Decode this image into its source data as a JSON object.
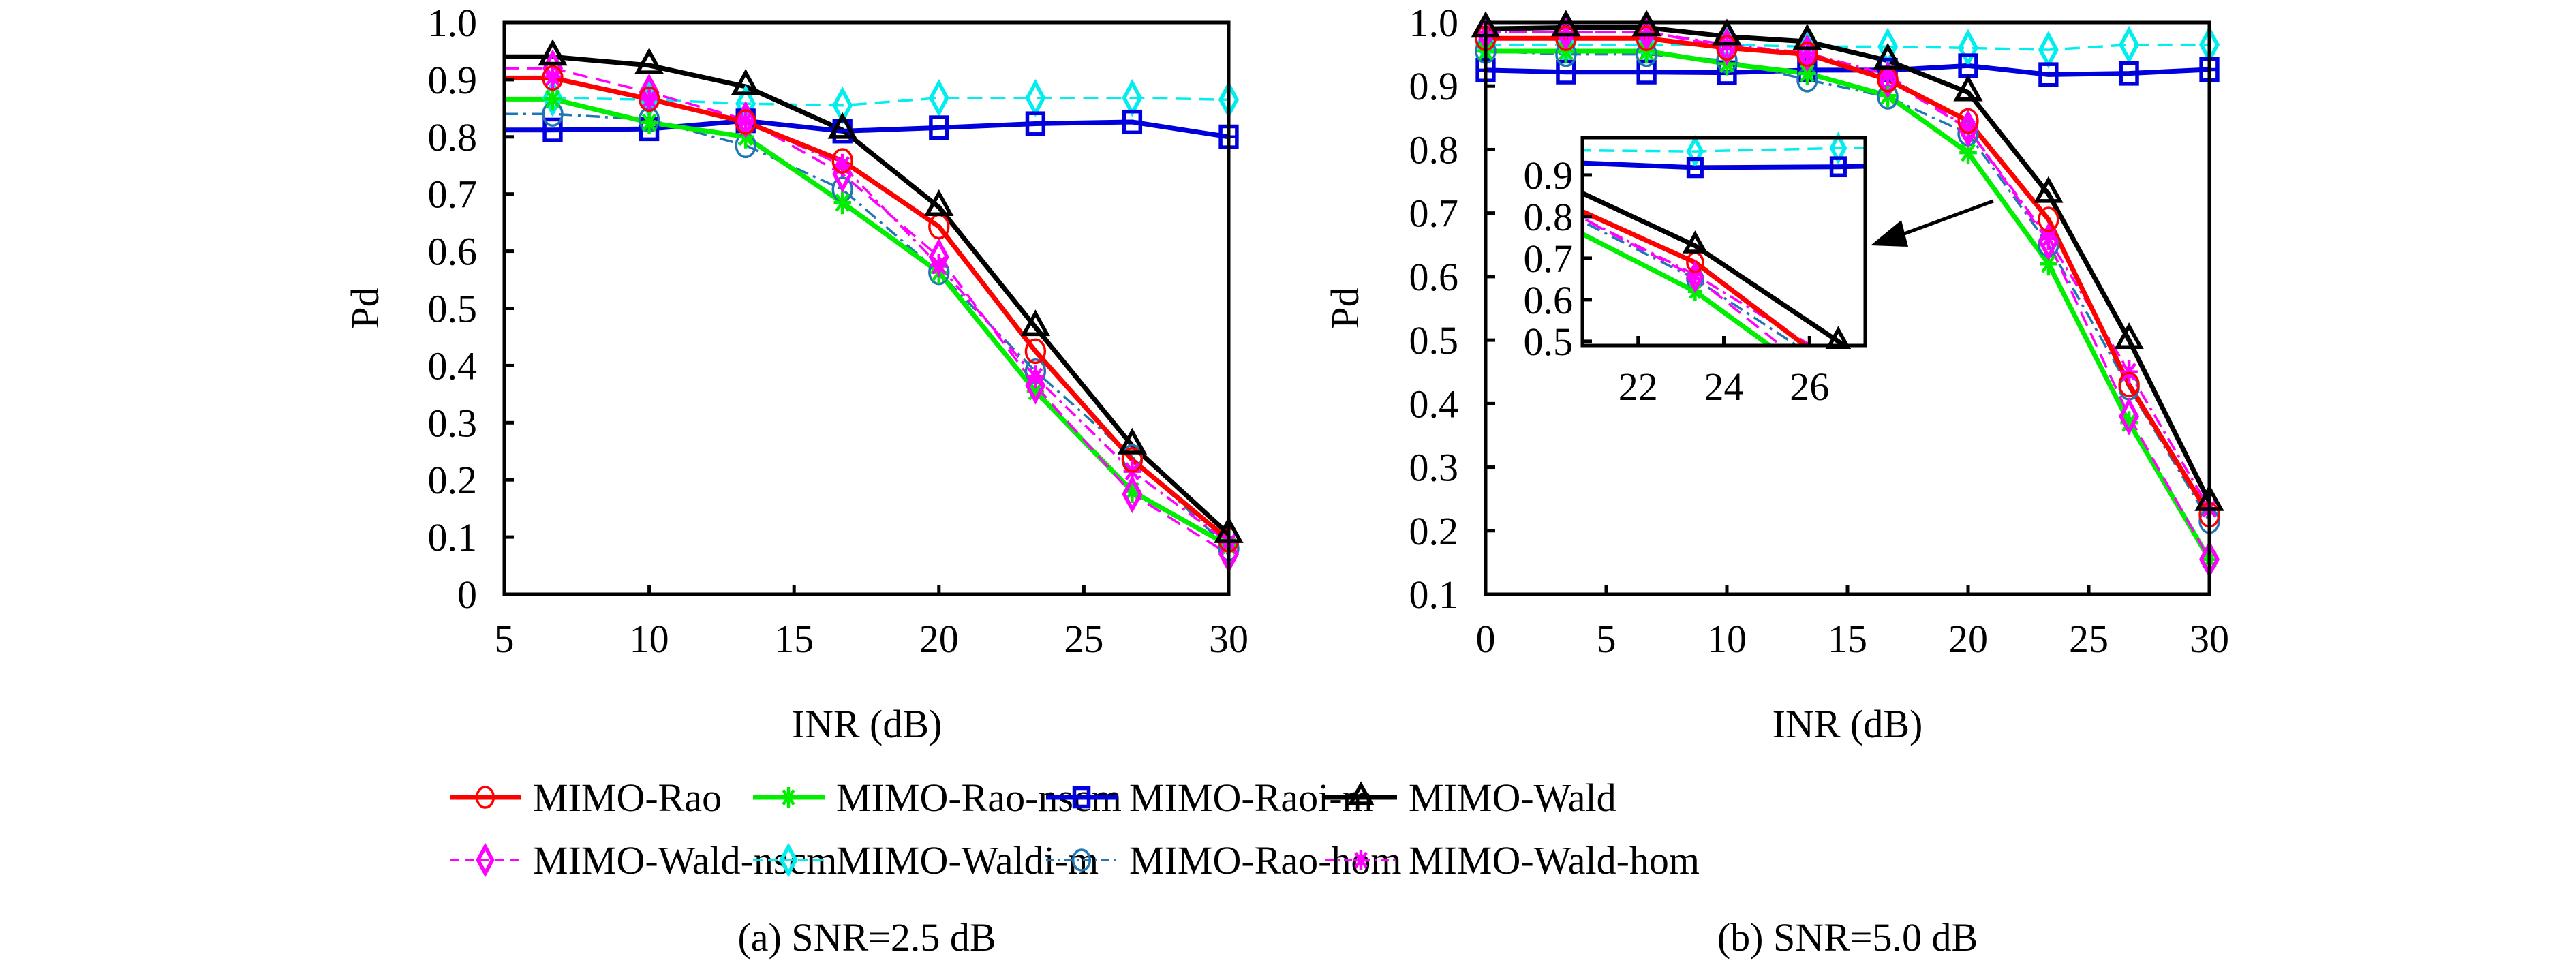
{
  "figure": {
    "captions": [
      "(a) SNR=2.5 dB",
      "(b) SNR=5.0 dB"
    ]
  },
  "legend": {
    "placement": "bottom-center",
    "columns": 4,
    "entries": [
      {
        "name": "MIMO-Rao",
        "color": "#ff0000",
        "dash": "solid",
        "marker": "circle",
        "width": "thick"
      },
      {
        "name": "MIMO-Rao-nscm",
        "color": "#00ee00",
        "dash": "solid",
        "marker": "asterisk",
        "width": "thick"
      },
      {
        "name": "MIMO-Raoi-m",
        "color": "#0000dd",
        "dash": "solid",
        "marker": "square",
        "width": "thick"
      },
      {
        "name": "MIMO-Wald",
        "color": "#000000",
        "dash": "solid",
        "marker": "triangle",
        "width": "thick"
      },
      {
        "name": "MIMO-Wald-nscm",
        "color": "#ff00ff",
        "dash": "dashed",
        "marker": "diamond",
        "width": "thin"
      },
      {
        "name": "MIMO-Waldi-m",
        "color": "#00eeee",
        "dash": "dashed",
        "marker": "diamond",
        "width": "thin"
      },
      {
        "name": "MIMO-Rao-hom",
        "color": "#1f77b4",
        "dash": "dashdot",
        "marker": "circle",
        "width": "thin"
      },
      {
        "name": "MIMO-Wald-hom",
        "color": "#ff00ff",
        "dash": "dashdot",
        "marker": "asterisk",
        "width": "thin"
      }
    ]
  },
  "chart_data": [
    {
      "type": "line",
      "title": "",
      "caption": "(a) SNR=2.5 dB",
      "xlabel": "INR (dB)",
      "ylabel": "Pd",
      "xlim": [
        5,
        30
      ],
      "ylim": [
        0,
        1.0
      ],
      "xticks": [
        5,
        10,
        15,
        20,
        25,
        30
      ],
      "xtick_labels": [
        "5",
        "10",
        "15",
        "20",
        "25",
        "30"
      ],
      "yticks": [
        0,
        0.1,
        0.2,
        0.3,
        0.4,
        0.5,
        0.6,
        0.7,
        0.8,
        0.9,
        1.0
      ],
      "ytick_labels": [
        "0",
        "0.1",
        "0.2",
        "0.3",
        "0.4",
        "0.5",
        "0.6",
        "0.7",
        "0.8",
        "0.9",
        "1.0"
      ],
      "grid": false,
      "x": [
        5,
        6.67,
        10,
        13.33,
        16.67,
        20,
        23.33,
        26.67,
        30
      ],
      "marker_x": [
        6.67,
        10,
        13.33,
        16.67,
        20,
        23.33,
        26.67,
        30
      ],
      "series": [
        {
          "name": "MIMO-Rao",
          "values": [
            0.903,
            0.903,
            0.866,
            0.826,
            0.758,
            0.643,
            0.425,
            0.235,
            0.095
          ]
        },
        {
          "name": "MIMO-Rao-nscm",
          "values": [
            0.866,
            0.866,
            0.825,
            0.8,
            0.685,
            0.563,
            0.355,
            0.18,
            0.085
          ]
        },
        {
          "name": "MIMO-Raoi-m",
          "values": [
            0.812,
            0.812,
            0.814,
            0.828,
            0.81,
            0.816,
            0.823,
            0.826,
            0.8
          ]
        },
        {
          "name": "MIMO-Wald",
          "values": [
            0.94,
            0.94,
            0.925,
            0.888,
            0.812,
            0.677,
            0.467,
            0.26,
            0.105
          ]
        },
        {
          "name": "MIMO-Wald-nscm",
          "values": [
            0.92,
            0.92,
            0.878,
            0.83,
            0.735,
            0.59,
            0.365,
            0.175,
            0.07
          ]
        },
        {
          "name": "MIMO-Waldi-m",
          "values": [
            0.868,
            0.868,
            0.865,
            0.858,
            0.855,
            0.868,
            0.868,
            0.868,
            0.865
          ]
        },
        {
          "name": "MIMO-Rao-hom",
          "values": [
            0.84,
            0.84,
            0.83,
            0.785,
            0.708,
            0.563,
            0.39,
            0.24,
            0.08
          ]
        },
        {
          "name": "MIMO-Wald-hom",
          "values": [
            0.905,
            0.905,
            0.866,
            0.828,
            0.75,
            0.575,
            0.38,
            0.215,
            0.09
          ]
        }
      ]
    },
    {
      "type": "line",
      "title": "",
      "caption": "(b) SNR=5.0 dB",
      "xlabel": "INR (dB)",
      "ylabel": "Pd",
      "xlim": [
        0,
        30
      ],
      "ylim": [
        0.1,
        1.0
      ],
      "xticks": [
        0,
        5,
        10,
        15,
        20,
        25,
        30
      ],
      "xtick_labels": [
        "0",
        "5",
        "10",
        "15",
        "20",
        "25",
        "30"
      ],
      "yticks": [
        0.1,
        0.2,
        0.3,
        0.4,
        0.5,
        0.6,
        0.7,
        0.8,
        0.9,
        1.0
      ],
      "ytick_labels": [
        "0.1",
        "0.2",
        "0.3",
        "0.4",
        "0.5",
        "0.6",
        "0.7",
        "0.8",
        "0.9",
        "1.0"
      ],
      "grid": false,
      "x": [
        0,
        3.33,
        6.67,
        10,
        13.33,
        16.67,
        20,
        23.33,
        26.67,
        30
      ],
      "marker_x": [
        0,
        3.33,
        6.67,
        10,
        13.33,
        16.67,
        20,
        23.33,
        26.67,
        30
      ],
      "series": [
        {
          "name": "MIMO-Rao",
          "values": [
            0.975,
            0.975,
            0.975,
            0.96,
            0.95,
            0.91,
            0.845,
            0.69,
            0.43,
            0.225
          ]
        },
        {
          "name": "MIMO-Rao-nscm",
          "values": [
            0.955,
            0.955,
            0.955,
            0.935,
            0.92,
            0.885,
            0.795,
            0.62,
            0.37,
            0.155
          ]
        },
        {
          "name": "MIMO-Raoi-m",
          "values": [
            0.925,
            0.922,
            0.922,
            0.921,
            0.925,
            0.925,
            0.932,
            0.918,
            0.92,
            0.926
          ]
        },
        {
          "name": "MIMO-Wald",
          "values": [
            0.99,
            0.992,
            0.992,
            0.978,
            0.97,
            0.94,
            0.89,
            0.73,
            0.5,
            0.245
          ]
        },
        {
          "name": "MIMO-Wald-nscm",
          "values": [
            0.985,
            0.985,
            0.985,
            0.962,
            0.952,
            0.91,
            0.833,
            0.655,
            0.38,
            0.155
          ]
        },
        {
          "name": "MIMO-Waldi-m",
          "values": [
            0.965,
            0.965,
            0.965,
            0.965,
            0.962,
            0.962,
            0.96,
            0.957,
            0.965,
            0.965
          ]
        },
        {
          "name": "MIMO-Rao-hom",
          "values": [
            0.955,
            0.95,
            0.95,
            0.94,
            0.91,
            0.883,
            0.825,
            0.65,
            0.425,
            0.215
          ]
        },
        {
          "name": "MIMO-Wald-hom",
          "values": [
            0.985,
            0.985,
            0.985,
            0.965,
            0.952,
            0.918,
            0.833,
            0.66,
            0.45,
            0.235
          ]
        }
      ],
      "inset": {
        "xlim": [
          20.7,
          27.3
        ],
        "ylim": [
          0.49,
          0.99
        ],
        "xticks": [
          22,
          24,
          26
        ],
        "xtick_labels": [
          "22",
          "24",
          "26"
        ],
        "yticks": [
          0.5,
          0.6,
          0.7,
          0.8,
          0.9
        ],
        "ytick_labels": [
          "0.5",
          "0.6",
          "0.7",
          "0.8",
          "0.9"
        ],
        "arrow": "points from main curves at INR≈23 toward inset"
      }
    }
  ]
}
